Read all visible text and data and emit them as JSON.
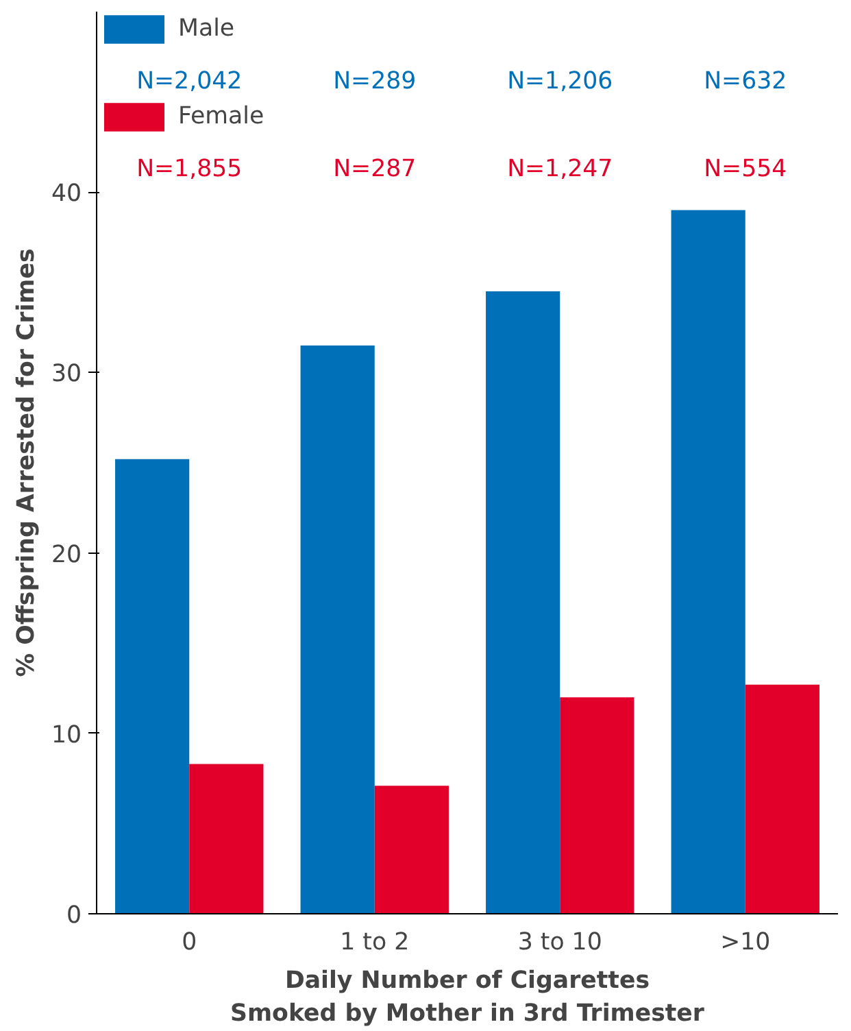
{
  "chart_data": {
    "type": "bar",
    "xlabel": "Daily Number of Cigarettes\nSmoked by Mother in 3rd Trimester",
    "ylabel": "% Offspring Arrested for Crimes",
    "categories": [
      "0",
      "1 to 2",
      "3 to 10",
      ">10"
    ],
    "series": [
      {
        "name": "Male",
        "color": "#0070b8",
        "values": [
          25.2,
          31.5,
          34.5,
          39.0
        ]
      },
      {
        "name": "Female",
        "color": "#e2002a",
        "values": [
          8.3,
          7.1,
          12.0,
          12.7
        ]
      }
    ],
    "ylim": [
      0,
      50
    ],
    "yticks": [
      0,
      10,
      20,
      30,
      40
    ],
    "grid": false,
    "legend": "top left",
    "annotations": [
      "N=2,042",
      "N=289",
      "N=1,206",
      "N=632",
      "N=1,855",
      "N=287",
      "N=1,247",
      "N=554"
    ]
  }
}
